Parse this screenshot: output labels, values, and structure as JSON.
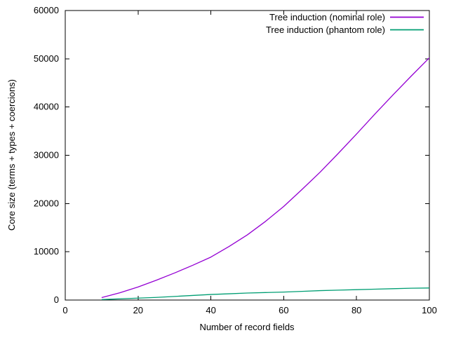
{
  "chart_data": {
    "type": "line",
    "title": "",
    "xlabel": "Number of record fields",
    "ylabel": "Core size (terms + types + coercions)",
    "xlim": [
      0,
      100
    ],
    "ylim": [
      0,
      60000
    ],
    "xticks": [
      0,
      20,
      40,
      60,
      80,
      100
    ],
    "yticks": [
      0,
      10000,
      20000,
      30000,
      40000,
      50000,
      60000
    ],
    "grid": false,
    "legend_position": "top-right-inside",
    "legend_box": false,
    "series": [
      {
        "id": "nominal",
        "name": "Tree induction (nominal role)",
        "color": "#9400d3",
        "x": [
          10,
          15,
          20,
          25,
          30,
          35,
          40,
          45,
          50,
          55,
          60,
          65,
          70,
          75,
          80,
          85,
          90,
          95,
          100
        ],
        "y": [
          500,
          1500,
          2700,
          4100,
          5600,
          7200,
          8900,
          11100,
          13500,
          16300,
          19400,
          22900,
          26500,
          30400,
          34400,
          38500,
          42500,
          46400,
          50200
        ]
      },
      {
        "id": "phantom",
        "name": "Tree induction (phantom role)",
        "color": "#009e73",
        "x": [
          10,
          15,
          20,
          25,
          30,
          35,
          40,
          45,
          50,
          55,
          60,
          65,
          70,
          75,
          80,
          85,
          90,
          95,
          100
        ],
        "y": [
          100,
          250,
          400,
          550,
          750,
          950,
          1150,
          1300,
          1450,
          1550,
          1650,
          1800,
          1950,
          2050,
          2150,
          2250,
          2350,
          2450,
          2500
        ]
      }
    ]
  },
  "colors": {
    "background": "#ffffff",
    "axis": "#000000",
    "text": "#000000"
  }
}
